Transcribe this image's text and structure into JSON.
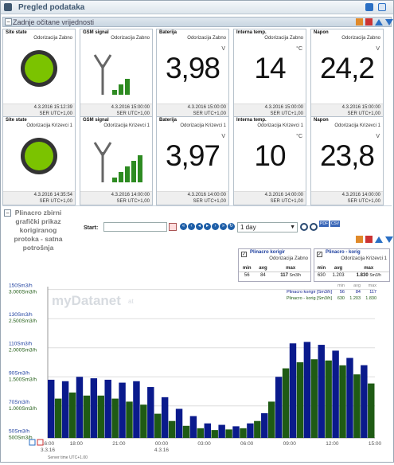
{
  "header": {
    "title": "Pregled podataka"
  },
  "overview": {
    "title": "Zadnje očitane vrijednosti"
  },
  "rows": [
    {
      "tiles": [
        {
          "title": "Site state",
          "site": "Odorizacija Zabno",
          "kind": "state",
          "status_color": "#7bc300",
          "time": "4.3.2016 15:12:39",
          "tz": "SER UTC+1,00"
        },
        {
          "title": "GSM signal",
          "site": "Odorizacija Zabno",
          "kind": "gsm",
          "bars_level": 3,
          "bars_total": 5,
          "time": "4.3.2016 15:00:00",
          "tz": "SER UTC+1,00"
        },
        {
          "title": "Baterija",
          "site": "Odorizacija Zabno",
          "kind": "value",
          "value": "3,98",
          "unit": "V",
          "time": "4.3.2016 15:00:00",
          "tz": "SER UTC+1,00"
        },
        {
          "title": "Interna temp.",
          "site": "Odorizacija Zabno",
          "kind": "value",
          "value": "14",
          "unit": "°C",
          "time": "4.3.2016 15:00:00",
          "tz": "SER UTC+1,00"
        },
        {
          "title": "Napon",
          "site": "Odorizacija Zabno",
          "kind": "value",
          "value": "24,2",
          "unit": "V",
          "time": "4.3.2016 15:00:00",
          "tz": "SER UTC+1,00"
        }
      ]
    },
    {
      "tiles": [
        {
          "title": "Site state",
          "site": "Odorizacija Krizevci 1",
          "kind": "state",
          "status_color": "#7bc300",
          "time": "4.3.2016 14:35:54",
          "tz": "SER UTC+1,00"
        },
        {
          "title": "GSM signal",
          "site": "Odorizacija Krizevci 1",
          "kind": "gsm",
          "bars_level": 5,
          "bars_total": 5,
          "time": "4.3.2016 14:00:00",
          "tz": "SER UTC+1,00"
        },
        {
          "title": "Baterija",
          "site": "Odorizacija Krizevci 1",
          "kind": "value",
          "value": "3,97",
          "unit": "V",
          "time": "4.3.2016 14:00:00",
          "tz": "SER UTC+1,00"
        },
        {
          "title": "Interna temp.",
          "site": "Odorizacija Krizevci 1",
          "kind": "value",
          "value": "10",
          "unit": "°C",
          "time": "4.3.2016 14:00:00",
          "tz": "SER UTC+1,00"
        },
        {
          "title": "Napon",
          "site": "Odorizacija Krizevci 1",
          "kind": "value",
          "value": "23,8",
          "unit": "V",
          "time": "4.3.2016 14:00:00",
          "tz": "SER UTC+1,00"
        }
      ]
    }
  ],
  "chart_section": {
    "title": "Plinacro zbirni grafički prikaz korigiranog protoka - satna potrošnja",
    "start_label": "Start:",
    "start_value": "",
    "period": "1 day",
    "export_pdf": "PDF",
    "export_csv": "CSV"
  },
  "legend": [
    {
      "name": "Plinacro korigir",
      "site": "Odorizacija Zabno",
      "min_label": "min",
      "avg_label": "avg",
      "max_label": "max",
      "min": "56",
      "avg": "84",
      "max": "117",
      "unit": "Sm3/h"
    },
    {
      "name": "Plinacro - korig",
      "site": "Odorizacija Krizevci 1",
      "min_label": "min",
      "avg_label": "avg",
      "max_label": "max",
      "min": "630",
      "avg": "1.203",
      "max": "1.830",
      "unit": "Sm3/h"
    }
  ],
  "watermark": "myDatanet",
  "watermark_sub": "at",
  "chart_footer": "Server time UTC+1.00",
  "colors": {
    "series1": "#0a1a8c",
    "series2": "#1f5b14",
    "accent": "#3f5871"
  },
  "chart_data": {
    "type": "bar",
    "x": [
      "16:00",
      "17:00",
      "18:00",
      "19:00",
      "20:00",
      "21:00",
      "22:00",
      "23:00",
      "00:00",
      "01:00",
      "02:00",
      "03:00",
      "04:00",
      "05:00",
      "06:00",
      "07:00",
      "08:00",
      "09:00",
      "10:00",
      "11:00",
      "12:00",
      "13:00",
      "14:00"
    ],
    "x_tick_labels": [
      "16:00",
      "18:00",
      "21:00",
      "00:00",
      "03:00",
      "06:00",
      "09:00",
      "12:00",
      "15:00"
    ],
    "x_date_labels": [
      "3.3.16",
      "4.3.16"
    ],
    "series": [
      {
        "name": "Plinacro korigir",
        "axis": "left",
        "values": [
          88,
          87,
          90,
          89,
          88,
          86,
          87,
          83,
          76,
          68,
          63,
          58,
          57,
          56,
          58,
          65,
          90,
          113,
          114,
          112,
          108,
          103,
          98
        ]
      },
      {
        "name": "Plinacro - korig",
        "axis": "right",
        "values": [
          1150,
          1250,
          1200,
          1200,
          1150,
          1100,
          1050,
          900,
          780,
          700,
          660,
          630,
          640,
          660,
          780,
          1100,
          1650,
          1750,
          1800,
          1780,
          1700,
          1550,
          1400
        ]
      }
    ],
    "left_axis": {
      "ticks": [
        "50Sm3/h",
        "70Sm3/h",
        "90Sm3/h",
        "110Sm3/h",
        "130Sm3/h",
        "150Sm3/h"
      ],
      "range": [
        48,
        152
      ]
    },
    "right_axis": {
      "ticks": [
        "500Sm3/h",
        "1.000Sm3/h",
        "1.500Sm3/h",
        "2.000Sm3/h",
        "2.500Sm3/h",
        "3.000Sm3/h"
      ],
      "range": [
        500,
        3000
      ]
    },
    "legend_table": {
      "headers": [
        "min",
        "avg",
        "max"
      ],
      "rows": [
        {
          "name": "Plinacro korigir [Sm3/h]",
          "min": "56",
          "avg": "84",
          "max": "117"
        },
        {
          "name": "Plinacro - korig [Sm3/h]",
          "min": "630",
          "avg": "1.203",
          "max": "1.830"
        }
      ]
    }
  }
}
